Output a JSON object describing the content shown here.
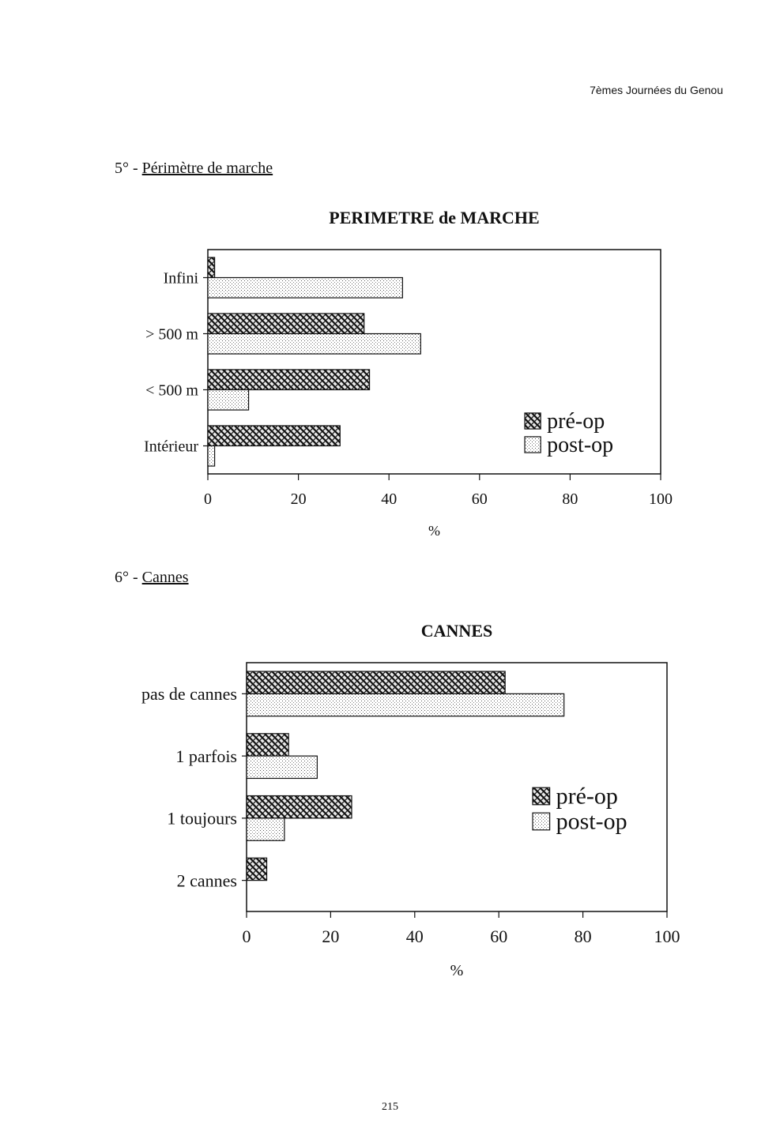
{
  "header": {
    "running_title": "7èmes Journées du Genou"
  },
  "sections": [
    {
      "number": "5° - ",
      "title": "Périmètre de marche"
    },
    {
      "number": "6° - ",
      "title": "Cannes"
    }
  ],
  "page_number": "215",
  "colors": {
    "axis": "#111111",
    "pre_op_pattern": "crosshatch-dark",
    "post_op_pattern": "light-dotted"
  },
  "chart_data": [
    {
      "type": "bar",
      "orientation": "horizontal",
      "title": "PERIMETRE de MARCHE",
      "xlabel": "%",
      "ylabel": "",
      "xlim": [
        0,
        100
      ],
      "xticks": [
        "0",
        "20",
        "40",
        "60",
        "80",
        "100"
      ],
      "categories": [
        "Infini",
        "> 500 m",
        "< 500 m",
        "Intérieur"
      ],
      "series": [
        {
          "name": "pré-op",
          "values": [
            1.5,
            34.5,
            35.7,
            29.2
          ]
        },
        {
          "name": "post-op",
          "values": [
            43,
            47,
            9,
            1.5
          ]
        }
      ],
      "legend": "bottom-right",
      "grid": false
    },
    {
      "type": "bar",
      "orientation": "horizontal",
      "title": "CANNES",
      "xlabel": "%",
      "ylabel": "",
      "xlim": [
        0,
        100
      ],
      "xticks": [
        "0",
        "20",
        "40",
        "60",
        "80",
        "100"
      ],
      "categories": [
        "pas de cannes",
        "1 parfois",
        "1 toujours",
        "2 cannes"
      ],
      "series": [
        {
          "name": "pré-op",
          "values": [
            61.5,
            10,
            25,
            4.8
          ]
        },
        {
          "name": "post-op",
          "values": [
            75.5,
            16.8,
            9,
            0
          ]
        }
      ],
      "legend": "right",
      "grid": false
    }
  ]
}
